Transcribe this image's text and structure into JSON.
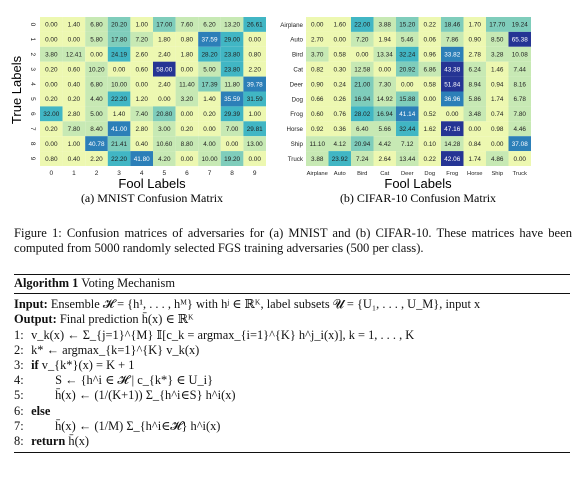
{
  "chart_data": [
    {
      "type": "heatmap",
      "ylabel": "True Labels",
      "xlabel": "Fool Labels",
      "caption": "(a) MNIST Confusion Matrix",
      "row_labels": [
        "0",
        "1",
        "2",
        "3",
        "4",
        "5",
        "6",
        "7",
        "8",
        "9"
      ],
      "col_labels": [
        "0",
        "1",
        "2",
        "3",
        "4",
        "5",
        "6",
        "7",
        "8",
        "9"
      ],
      "values": [
        [
          "0.00",
          "1.40",
          "6.80",
          "20.20",
          "1.00",
          "17.00",
          "7.60",
          "6.20",
          "13.20",
          "26.61"
        ],
        [
          "0.00",
          "0.00",
          "5.80",
          "17.80",
          "7.20",
          "1.80",
          "0.80",
          "37.59",
          "29.00",
          "0.00"
        ],
        [
          "3.80",
          "12.41",
          "0.00",
          "24.19",
          "2.60",
          "2.40",
          "1.80",
          "28.20",
          "23.80",
          "0.80"
        ],
        [
          "0.20",
          "0.60",
          "10.20",
          "0.00",
          "0.60",
          "58.00",
          "0.00",
          "5.00",
          "23.80",
          "2.20"
        ],
        [
          "0.00",
          "0.40",
          "6.80",
          "10.00",
          "0.00",
          "2.40",
          "11.40",
          "17.39",
          "11.80",
          "39.78"
        ],
        [
          "0.20",
          "0.20",
          "4.40",
          "22.20",
          "1.20",
          "0.00",
          "3.20",
          "1.40",
          "35.59",
          "31.59"
        ],
        [
          "32.00",
          "2.80",
          "5.00",
          "1.40",
          "7.40",
          "20.80",
          "0.00",
          "0.20",
          "29.39",
          "1.00"
        ],
        [
          "0.20",
          "7.80",
          "8.40",
          "41.00",
          "2.80",
          "3.00",
          "0.20",
          "0.00",
          "7.00",
          "29.81"
        ],
        [
          "0.00",
          "1.00",
          "40.78",
          "21.41",
          "0.40",
          "10.60",
          "8.80",
          "4.00",
          "0.00",
          "13.00"
        ],
        [
          "0.80",
          "0.40",
          "2.20",
          "22.20",
          "41.80",
          "4.20",
          "0.00",
          "10.00",
          "19.20",
          "0.00"
        ]
      ]
    },
    {
      "type": "heatmap",
      "xlabel": "Fool Labels",
      "caption": "(b) CIFAR-10 Confusion Matrix",
      "row_labels": [
        "Airplane",
        "Auto",
        "Bird",
        "Cat",
        "Deer",
        "Dog",
        "Frog",
        "Horse",
        "Ship",
        "Truck"
      ],
      "col_labels": [
        "Airplane",
        "Auto",
        "Bird",
        "Cat",
        "Deer",
        "Dog",
        "Frog",
        "Horse",
        "Ship",
        "Truck"
      ],
      "values": [
        [
          "0.00",
          "1.60",
          "22.00",
          "3.88",
          "15.20",
          "0.22",
          "18.46",
          "1.70",
          "17.70",
          "19.24"
        ],
        [
          "2.70",
          "0.00",
          "7.20",
          "1.94",
          "5.46",
          "0.06",
          "7.86",
          "0.90",
          "8.50",
          "65.38"
        ],
        [
          "3.70",
          "0.58",
          "0.00",
          "13.34",
          "32.24",
          "0.96",
          "33.82",
          "2.78",
          "3.28",
          "10.08"
        ],
        [
          "0.82",
          "0.30",
          "12.58",
          "0.00",
          "20.92",
          "6.86",
          "43.38",
          "6.24",
          "1.46",
          "7.44"
        ],
        [
          "0.90",
          "0.24",
          "21.00",
          "7.30",
          "0.00",
          "0.58",
          "51.84",
          "8.94",
          "0.94",
          "8.16"
        ],
        [
          "0.66",
          "0.26",
          "16.94",
          "14.92",
          "15.88",
          "0.00",
          "36.96",
          "5.86",
          "1.74",
          "6.78"
        ],
        [
          "0.60",
          "0.76",
          "28.02",
          "16.94",
          "41.14",
          "0.52",
          "0.00",
          "3.48",
          "0.74",
          "7.80"
        ],
        [
          "0.92",
          "0.36",
          "6.40",
          "5.66",
          "32.44",
          "1.62",
          "47.16",
          "0.00",
          "0.98",
          "4.46"
        ],
        [
          "11.10",
          "4.12",
          "20.94",
          "4.42",
          "7.12",
          "0.10",
          "14.28",
          "0.84",
          "0.00",
          "37.08"
        ],
        [
          "3.88",
          "23.92",
          "7.24",
          "2.64",
          "13.44",
          "0.22",
          "42.06",
          "1.74",
          "4.86",
          "0.00"
        ]
      ]
    }
  ],
  "figure_caption": "Figure 1: Confusion matrices of adversaries for (a) MNIST and (b) CIFAR-10. These matrices have been computed from 5000 randomly selected FGS training adversaries (500 per class).",
  "algorithm": {
    "title_bold": "Algorithm 1",
    "title": "Voting Mechanism",
    "input_label": "Input:",
    "input_text": "Ensemble 𝓗 = {h¹, . . . , hᴹ} with hʲ ∈ ℝᴷ, label subsets 𝓤 = {U₁, . . . , U_M}, input x",
    "output_label": "Output:",
    "output_text": "Final prediction h̄(x) ∈ ℝᴷ",
    "lines": [
      {
        "num": "1:",
        "text": "v_k(x) ← Σ_{j=1}^{M} 𝕀[c_k = argmax_{i=1}^{K} h^j_i(x)],  k = 1, . . . , K"
      },
      {
        "num": "2:",
        "text": "k* ← argmax_{k=1}^{K} v_k(x)"
      },
      {
        "num": "3:",
        "kw": "if",
        "text": "v_{k*}(x) = K + 1"
      },
      {
        "num": "4:",
        "text": "S ← {h^i ∈ 𝓗 | c_{k*} ∈ U_i}"
      },
      {
        "num": "5:",
        "text": "h̄(x) ← (1/(K+1)) Σ_{h^i∈S} h^i(x)"
      },
      {
        "num": "6:",
        "kw": "else",
        "text": ""
      },
      {
        "num": "7:",
        "text": "h̄(x) ← (1/M) Σ_{h^i∈𝓗} h^i(x)"
      },
      {
        "num": "8:",
        "kw": "return",
        "text": "h̄(x)"
      }
    ]
  },
  "colormap": [
    "#edf8b1",
    "#c7e9b4",
    "#7fcdbb",
    "#41b6c4",
    "#2c7fb8",
    "#253494"
  ]
}
